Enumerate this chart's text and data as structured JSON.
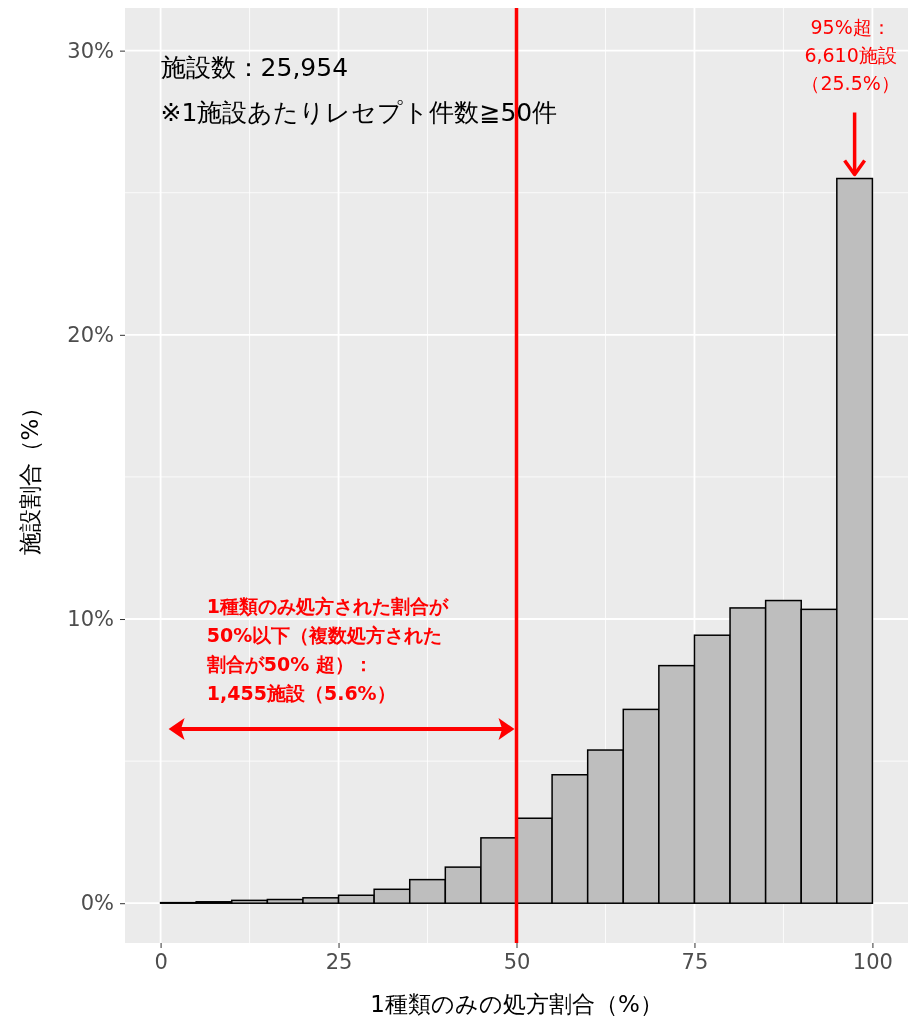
{
  "chart_data": {
    "type": "histogram",
    "xlabel": "1種類のみの処方割合（%）",
    "ylabel": "施設割合（%）",
    "bins": [
      0,
      5,
      10,
      15,
      20,
      25,
      30,
      35,
      40,
      45,
      50,
      55,
      60,
      65,
      70,
      75,
      80,
      85,
      90,
      95,
      100
    ],
    "values": [
      0.02,
      0.05,
      0.1,
      0.13,
      0.19,
      0.28,
      0.49,
      0.83,
      1.27,
      2.3,
      2.99,
      4.52,
      5.39,
      6.82,
      8.36,
      9.43,
      10.39,
      10.65,
      10.34,
      25.5
    ],
    "color": "#bebebe",
    "xlim": [
      -5,
      105
    ],
    "xticks": [
      0,
      25,
      50,
      75,
      100
    ],
    "ylim": [
      -1.4,
      31.5
    ],
    "yticks": [
      {
        "value": 0,
        "label": "0%"
      },
      {
        "value": 10,
        "label": "10%"
      },
      {
        "value": 20,
        "label": "20%"
      },
      {
        "value": 30,
        "label": "30%"
      }
    ],
    "grid": true,
    "ref_lines": [
      {
        "axis": "x",
        "value": 50,
        "color": "#ff0000"
      }
    ],
    "annotations": [
      "施設数：25,954",
      "※1施設あたりレセプト件数≧50件",
      {
        "text": "95%超：6,610施設（25.5%）",
        "x": 97.5,
        "y": 25.5
      },
      "1種類のみ処方された割合が50%以下（複数処方された割合が50% 超）：1,455施設（5.6%）"
    ]
  }
}
